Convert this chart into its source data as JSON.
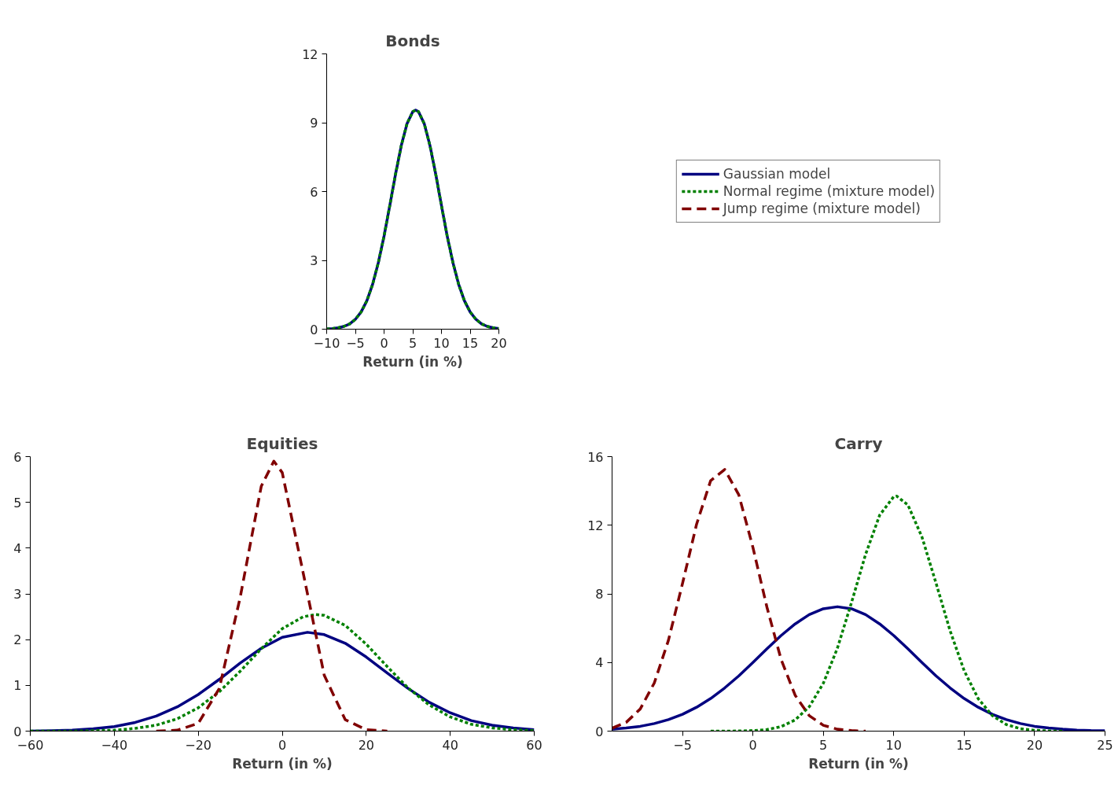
{
  "chart_data": [
    {
      "type": "line",
      "title": "Bonds",
      "xlabel": "Return (in %)",
      "xlim": [
        -10,
        20
      ],
      "ylim": [
        0,
        12
      ],
      "xticks": [
        {
          "value": -10,
          "label": "−10"
        },
        {
          "value": -5,
          "label": "−5"
        },
        0,
        5,
        10,
        15,
        20
      ],
      "yticks": [
        0,
        3,
        6,
        9,
        12
      ],
      "grid": false,
      "legend": "right",
      "x": [
        -10,
        -9,
        -8,
        -7,
        -6,
        -5,
        -4,
        -3,
        -2,
        -1,
        0,
        1,
        2,
        3,
        4,
        5,
        5.5,
        6,
        7,
        8,
        9,
        10,
        11,
        12,
        13,
        14,
        15,
        16,
        17,
        18,
        19,
        20
      ],
      "series": [
        {
          "name": "Gaussian model",
          "color": "#000080",
          "line_style": "solid",
          "values": [
            0.01,
            0.03,
            0.06,
            0.12,
            0.23,
            0.43,
            0.75,
            1.24,
            1.95,
            2.9,
            4.06,
            5.39,
            6.76,
            8.0,
            8.96,
            9.48,
            9.55,
            9.48,
            8.96,
            8.0,
            6.76,
            5.39,
            4.06,
            2.9,
            1.95,
            1.24,
            0.75,
            0.43,
            0.23,
            0.12,
            0.06,
            0.03
          ]
        },
        {
          "name": "Normal regime (mixture model)",
          "color": "#008000",
          "line_style": "dotted",
          "values": [
            0.01,
            0.03,
            0.06,
            0.12,
            0.23,
            0.43,
            0.75,
            1.24,
            1.95,
            2.9,
            4.06,
            5.39,
            6.76,
            8.0,
            8.96,
            9.48,
            9.55,
            9.48,
            8.96,
            8.0,
            6.76,
            5.39,
            4.06,
            2.9,
            1.95,
            1.24,
            0.75,
            0.43,
            0.23,
            0.12,
            0.06,
            0.03
          ]
        },
        {
          "name": "Jump regime (mixture model)",
          "color": "#800000",
          "line_style": "dashed",
          "values": [
            null,
            null,
            null,
            null,
            null,
            null,
            null,
            null,
            null,
            null,
            null,
            null,
            null,
            null,
            null,
            null,
            null,
            null,
            null,
            null,
            null,
            null,
            null,
            null,
            null,
            null,
            null,
            null,
            null,
            null,
            null,
            null
          ]
        }
      ]
    },
    {
      "type": "line",
      "title": "Equities",
      "xlabel": "Return (in %)",
      "xlim": [
        -60,
        60
      ],
      "ylim": [
        0,
        6
      ],
      "xticks": [
        {
          "value": -60,
          "label": "−60"
        },
        {
          "value": -40,
          "label": "−40"
        },
        {
          "value": -20,
          "label": "−20"
        },
        0,
        20,
        40,
        60
      ],
      "yticks": [
        0,
        1,
        2,
        3,
        4,
        5,
        6
      ],
      "grid": false,
      "legend": false,
      "series": [
        {
          "color": "#000080",
          "line_style": "solid",
          "x": [
            -60,
            -55,
            -50,
            -45,
            -40,
            -35,
            -30,
            -25,
            -20,
            -15,
            -10,
            -5,
            0,
            6,
            10,
            15,
            20,
            25,
            30,
            35,
            40,
            45,
            50,
            55,
            60
          ],
          "values": [
            0.0,
            0.01,
            0.02,
            0.05,
            0.1,
            0.19,
            0.33,
            0.53,
            0.8,
            1.13,
            1.49,
            1.81,
            2.05,
            2.16,
            2.11,
            1.92,
            1.62,
            1.27,
            0.93,
            0.63,
            0.4,
            0.23,
            0.13,
            0.07,
            0.03
          ]
        },
        {
          "color": "#008000",
          "line_style": "dotted",
          "x": [
            -60,
            -50,
            -45,
            -40,
            -35,
            -30,
            -25,
            -20,
            -15,
            -10,
            -5,
            0,
            5,
            8,
            10,
            15,
            20,
            25,
            30,
            35,
            40,
            45,
            50,
            55,
            60
          ],
          "values": [
            0.0,
            0.0,
            0.01,
            0.02,
            0.06,
            0.13,
            0.27,
            0.51,
            0.86,
            1.31,
            1.8,
            2.24,
            2.5,
            2.55,
            2.53,
            2.31,
            1.9,
            1.41,
            0.94,
            0.57,
            0.31,
            0.15,
            0.07,
            0.03,
            0.01
          ]
        },
        {
          "color": "#800000",
          "line_style": "dashed",
          "x": [
            -30,
            -25,
            -20,
            -15,
            -10,
            -5,
            -2,
            0,
            5,
            10,
            15,
            20,
            25
          ],
          "values": [
            0.0,
            0.02,
            0.17,
            0.93,
            2.93,
            5.35,
            5.9,
            5.65,
            3.45,
            1.22,
            0.25,
            0.03,
            0.0
          ]
        }
      ]
    },
    {
      "type": "line",
      "title": "Carry",
      "xlabel": "Return (in %)",
      "xlim": [
        -10,
        25
      ],
      "ylim": [
        0,
        16
      ],
      "xticks": [
        {
          "value": -5,
          "label": "−5"
        },
        0,
        5,
        10,
        15,
        20,
        25
      ],
      "yticks": [
        0,
        4,
        8,
        12,
        16
      ],
      "grid": false,
      "legend": false,
      "series": [
        {
          "color": "#000080",
          "line_style": "solid",
          "x": [
            -10,
            -9,
            -8,
            -7,
            -6,
            -5,
            -4,
            -3,
            -2,
            -1,
            0,
            1,
            2,
            3,
            4,
            5,
            6,
            7,
            8,
            9,
            10,
            11,
            12,
            13,
            14,
            15,
            16,
            17,
            18,
            19,
            20,
            21,
            22,
            23,
            24,
            25
          ],
          "values": [
            0.11,
            0.18,
            0.28,
            0.44,
            0.67,
            0.98,
            1.39,
            1.9,
            2.52,
            3.22,
            4.0,
            4.8,
            5.57,
            6.25,
            6.79,
            7.13,
            7.25,
            7.13,
            6.79,
            6.25,
            5.57,
            4.8,
            4.0,
            3.22,
            2.52,
            1.9,
            1.39,
            0.98,
            0.67,
            0.44,
            0.28,
            0.18,
            0.11,
            0.06,
            0.03,
            0.02
          ]
        },
        {
          "color": "#008000",
          "line_style": "dotted",
          "x": [
            -3,
            -2,
            -1,
            0,
            1,
            2,
            3,
            4,
            5,
            6,
            7,
            8,
            9,
            10,
            10.2,
            11,
            12,
            13,
            14,
            15,
            16,
            17,
            18,
            19,
            20,
            21,
            22
          ],
          "values": [
            0.0,
            0.0,
            0.01,
            0.03,
            0.09,
            0.26,
            0.65,
            1.42,
            2.79,
            4.84,
            7.49,
            10.3,
            12.59,
            13.67,
            13.7,
            13.19,
            11.32,
            8.63,
            5.85,
            3.52,
            1.89,
            0.9,
            0.38,
            0.14,
            0.05,
            0.01,
            0.0
          ]
        },
        {
          "color": "#800000",
          "line_style": "dashed",
          "x": [
            -10,
            -9,
            -8,
            -7,
            -6,
            -5,
            -4,
            -3,
            -2,
            -1,
            0,
            1,
            2,
            3,
            4,
            5,
            6,
            7,
            8
          ],
          "values": [
            0.17,
            0.51,
            1.29,
            2.81,
            5.29,
            8.6,
            12.06,
            14.6,
            15.25,
            13.77,
            10.71,
            7.21,
            4.18,
            2.09,
            0.9,
            0.34,
            0.11,
            0.03,
            0.0
          ]
        }
      ]
    }
  ]
}
